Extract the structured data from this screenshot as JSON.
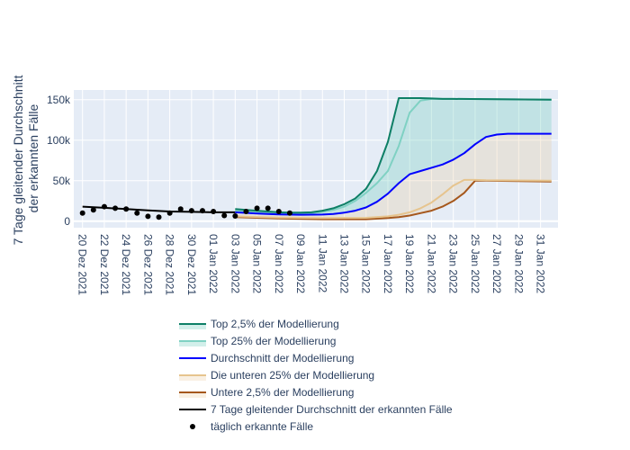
{
  "chart_data": {
    "type": "line",
    "ylabel_lines": [
      "7 Tage gleitender Durchschnitt",
      "der erkannten Fälle"
    ],
    "xlabel": "",
    "x_start": "2021-12-19",
    "x_range": [
      "2021-12-19",
      "2022-02-01"
    ],
    "ylim": [
      -8000,
      162000
    ],
    "y_ticks": [
      0,
      50000,
      100000,
      150000
    ],
    "y_tick_labels": [
      "0",
      "50k",
      "100k",
      "150k"
    ],
    "x_ticks": [
      1,
      3,
      5,
      7,
      9,
      11,
      13,
      15,
      17,
      19,
      21,
      23,
      25,
      27,
      29,
      31,
      33,
      35,
      37,
      39,
      41,
      43
    ],
    "x_tick_labels": [
      "20 Dez 2021",
      "22 Dez 2021",
      "24 Dez 2021",
      "26 Dez 2021",
      "28 Dez 2021",
      "30 Dez 2021",
      "01 Jan 2022",
      "03 Jan 2022",
      "05 Jan 2022",
      "07 Jan 2022",
      "09 Jan 2022",
      "11 Jan 2022",
      "13 Jan 2022",
      "15 Jan 2022",
      "17 Jan 2022",
      "19 Jan 2022",
      "21 Jan 2022",
      "23 Jan 2022",
      "25 Jan 2022",
      "27 Jan 2022",
      "29 Jan 2022",
      "31 Jan 2022"
    ],
    "grid": true,
    "legend_position": "bottom",
    "colors": {
      "plot_bg": "#e5ecf6",
      "grid": "#ffffff",
      "top_2_5": "#0e7f66",
      "top_25": "#7fd1c3",
      "mean": "#0000ff",
      "lower_25": "#e6c48e",
      "lower_2_5": "#a5571c",
      "moving_avg": "#000000",
      "daily": "#000000",
      "fill_top": "rgba(127,209,195,0.35)",
      "fill_lower": "rgba(230,196,142,0.25)"
    },
    "series": [
      {
        "name": "Top 2,5% der Modellierung",
        "key": "top_2_5",
        "x": [
          15,
          16,
          17,
          18,
          19,
          20,
          21,
          22,
          23,
          24,
          25,
          26,
          27,
          28,
          29,
          30,
          31,
          32,
          33,
          34,
          35,
          44
        ],
        "y": [
          15000,
          14000,
          13000,
          12000,
          11000,
          10500,
          10500,
          11000,
          13000,
          16000,
          21000,
          28000,
          40000,
          62000,
          98000,
          152000,
          152000,
          152000,
          151500,
          151000,
          151000,
          150000
        ]
      },
      {
        "name": "Top 25% der Modellierung",
        "key": "top_25",
        "x": [
          15,
          17,
          19,
          21,
          22,
          23,
          24,
          25,
          26,
          27,
          28,
          29,
          30,
          31,
          32,
          33,
          35,
          44
        ],
        "y": [
          13000,
          11500,
          10000,
          9500,
          10000,
          11500,
          14000,
          18000,
          25000,
          35000,
          47000,
          62000,
          93000,
          134000,
          149000,
          151000,
          151000,
          150000
        ]
      },
      {
        "name": "Durchschnitt der Modellierung",
        "key": "mean",
        "x": [
          15,
          17,
          19,
          21,
          23,
          24,
          25,
          26,
          27,
          28,
          29,
          30,
          31,
          32,
          33,
          34,
          35,
          36,
          37,
          38,
          39,
          40,
          44
        ],
        "y": [
          11000,
          9500,
          8500,
          8000,
          8200,
          9000,
          10500,
          13000,
          17000,
          24000,
          34000,
          47000,
          58000,
          62000,
          66000,
          70000,
          76000,
          84000,
          95000,
          104000,
          107000,
          108000,
          108000
        ]
      },
      {
        "name": "Die unteren 25% der Modellierung",
        "key": "lower_25",
        "x": [
          15,
          19,
          23,
          27,
          29,
          30,
          31,
          32,
          33,
          34,
          35,
          36,
          37,
          38,
          44
        ],
        "y": [
          6000,
          4500,
          4000,
          4200,
          6000,
          8000,
          11000,
          16000,
          23000,
          33000,
          44000,
          51000,
          51000,
          50500,
          50000
        ]
      },
      {
        "name": "Untere 2,5% der Modellierung",
        "key": "lower_2_5",
        "x": [
          15,
          19,
          23,
          27,
          29,
          30,
          31,
          32,
          33,
          34,
          35,
          36,
          37,
          38,
          44
        ],
        "y": [
          5000,
          3500,
          2500,
          2500,
          4000,
          5000,
          7000,
          10000,
          13000,
          18000,
          25000,
          35000,
          50000,
          50000,
          49000
        ]
      },
      {
        "name": "7 Tage gleitender Durchschnitt der erkannten Fälle",
        "key": "moving_avg",
        "x": [
          1,
          3,
          5,
          7,
          9,
          11,
          13,
          15
        ],
        "y": [
          18000,
          16500,
          15000,
          13500,
          12000,
          11500,
          11000,
          11000
        ]
      },
      {
        "name": "täglich erkannte Fälle",
        "key": "daily",
        "x": [
          1,
          2,
          3,
          4,
          5,
          6,
          7,
          8,
          9,
          10,
          11,
          12,
          13,
          14,
          15,
          16,
          17,
          18,
          19,
          20
        ],
        "y": [
          10000,
          14000,
          18000,
          16000,
          15000,
          10000,
          6000,
          5000,
          10000,
          15000,
          13000,
          13000,
          12000,
          7000,
          6500,
          12000,
          16000,
          16000,
          12000,
          10000
        ]
      }
    ]
  }
}
